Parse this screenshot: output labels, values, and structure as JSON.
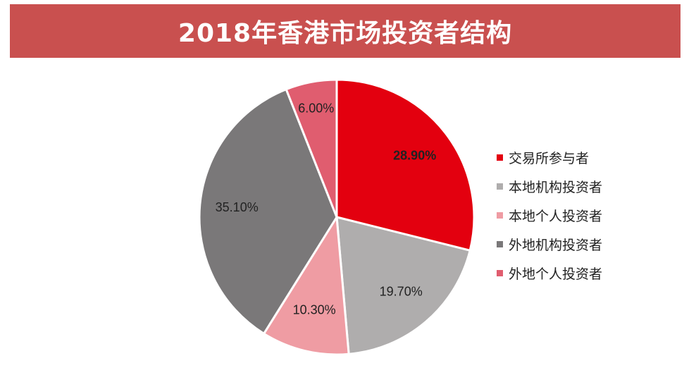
{
  "chart_data": {
    "type": "pie",
    "title": "2018年香港市场投资者结构",
    "slices": [
      {
        "name": "交易所参与者",
        "value": 28.9,
        "label": "28.90%",
        "color": "#e3000f"
      },
      {
        "name": "本地机构投资者",
        "value": 19.7,
        "label": "19.70%",
        "color": "#afadad"
      },
      {
        "name": "本地个人投资者",
        "value": 10.3,
        "label": "10.30%",
        "color": "#ef9ca3"
      },
      {
        "name": "外地机构投资者",
        "value": 35.1,
        "label": "35.10%",
        "color": "#7a7879"
      },
      {
        "name": "外地个人投资者",
        "value": 6.0,
        "label": "6.00%",
        "color": "#e05d6f"
      }
    ],
    "legend_position": "right"
  }
}
